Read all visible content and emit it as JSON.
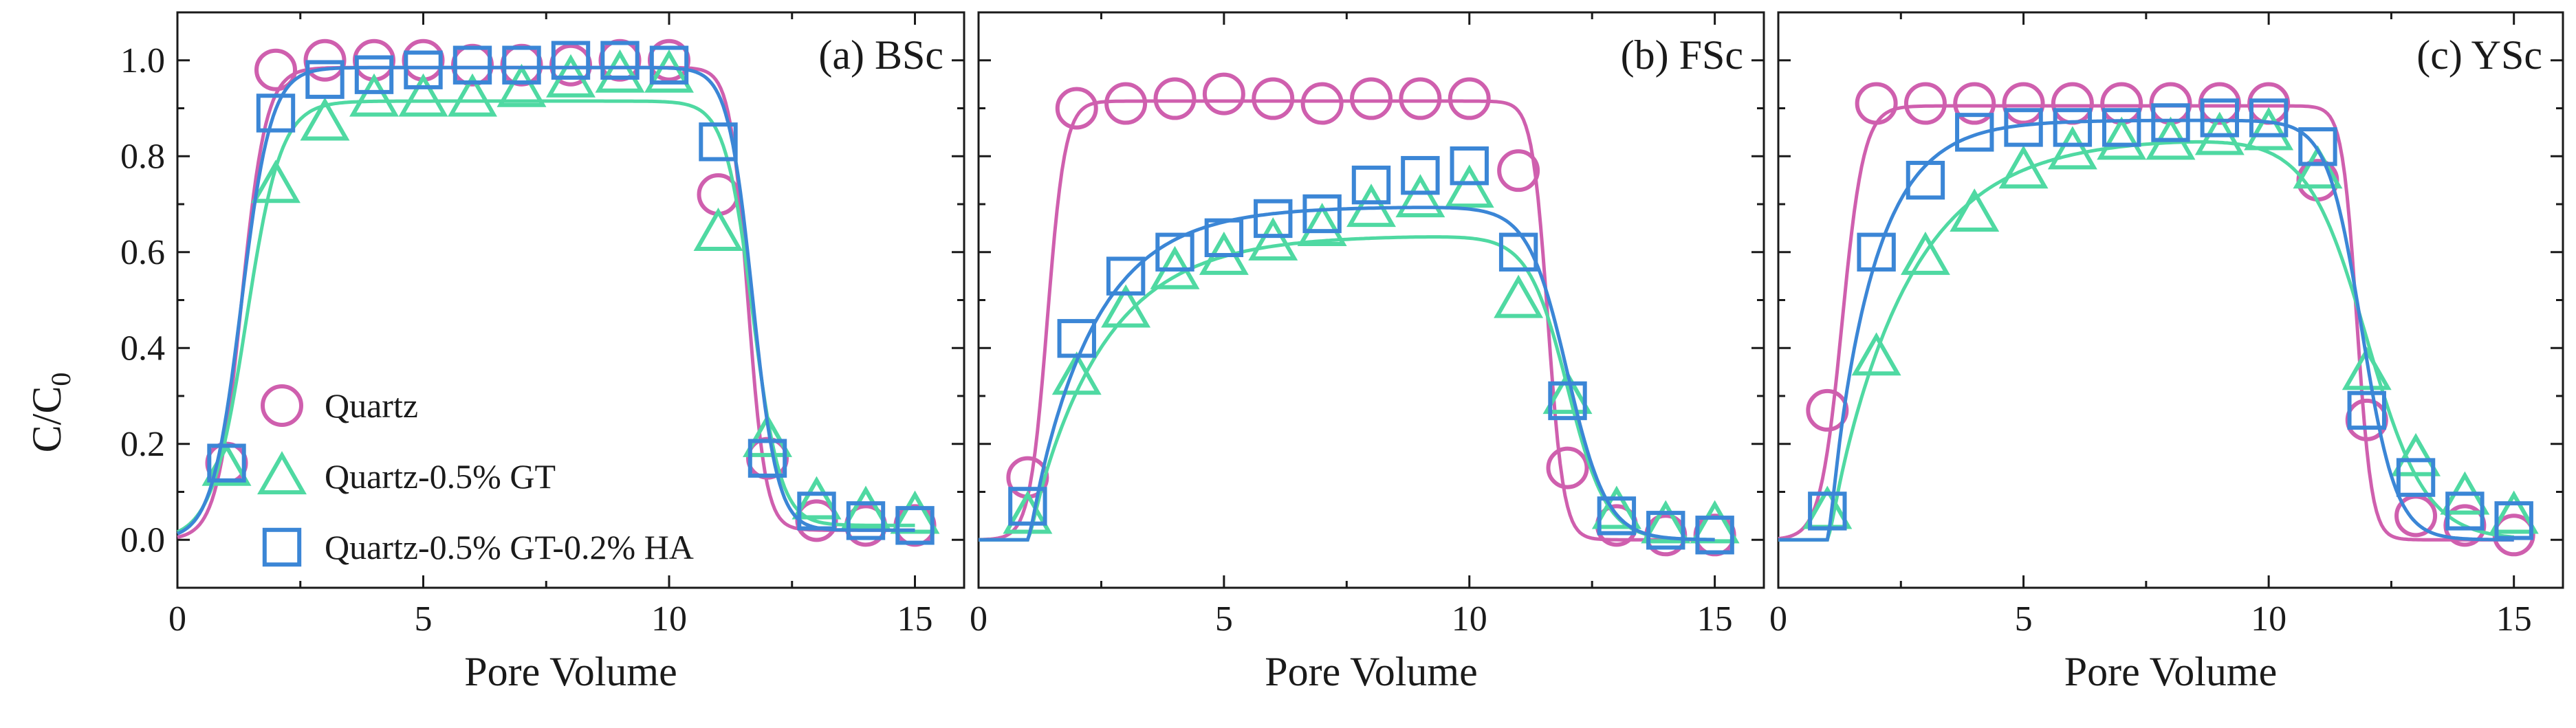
{
  "figure": {
    "ylabel": "C/C",
    "ylabel_subscript": "0"
  },
  "legend": {
    "items": [
      {
        "label": "Quartz",
        "marker": "circle",
        "color": "#cf5fae"
      },
      {
        "label": "Quartz-0.5% GT",
        "marker": "triangle",
        "color": "#4fd9a2"
      },
      {
        "label": "Quartz-0.5% GT-0.2% HA",
        "marker": "square",
        "color": "#3b86d6"
      }
    ]
  },
  "chart_data": [
    {
      "type": "scatter",
      "title": "(a) BSc",
      "xlabel": "Pore Volume",
      "ylabel": "C/C0",
      "xlim": [
        0,
        16
      ],
      "ylim": [
        -0.1,
        1.1
      ],
      "xticks": [
        0,
        5,
        10,
        15
      ],
      "yticks": [
        0.0,
        0.2,
        0.4,
        0.6,
        0.8,
        1.0
      ],
      "ytick_labels": [
        "0.0",
        "0.2",
        "0.4",
        "0.6",
        "0.8",
        "1.0"
      ],
      "x": [
        1,
        2,
        3,
        4,
        5,
        6,
        7,
        8,
        9,
        10,
        11,
        12,
        13,
        14,
        15
      ],
      "series": [
        {
          "name": "Quartz",
          "marker": "circle",
          "color": "#cf5fae",
          "values": [
            0.16,
            0.98,
            1.0,
            1.0,
            1.0,
            0.99,
            0.99,
            0.99,
            1.0,
            1.0,
            0.72,
            0.17,
            0.04,
            0.03,
            0.03
          ],
          "fit": {
            "plateau": 0.985,
            "rise_mid": 1.3,
            "rise_width": 0.25,
            "fall_mid": 11.6,
            "fall_width": 0.18,
            "tail": 0.02
          }
        },
        {
          "name": "Quartz-0.5% GT",
          "marker": "triangle",
          "color": "#4fd9a2",
          "values": [
            0.15,
            0.74,
            0.87,
            0.92,
            0.92,
            0.92,
            0.94,
            0.96,
            0.97,
            0.97,
            0.64,
            0.21,
            0.08,
            0.06,
            0.05
          ],
          "fit": {
            "plateau": 0.915,
            "rise_mid": 1.4,
            "rise_width": 0.35,
            "fall_mid": 11.7,
            "fall_width": 0.28,
            "tail": 0.03
          }
        },
        {
          "name": "Quartz-0.5% GT-0.2% HA",
          "marker": "square",
          "color": "#3b86d6",
          "values": [
            0.16,
            0.89,
            0.96,
            0.97,
            0.98,
            0.99,
            0.99,
            1.0,
            1.0,
            0.99,
            0.83,
            0.17,
            0.06,
            0.04,
            0.03
          ],
          "fit": {
            "plateau": 0.985,
            "rise_mid": 1.3,
            "rise_width": 0.3,
            "fall_mid": 11.7,
            "fall_width": 0.25,
            "tail": 0.02
          }
        }
      ]
    },
    {
      "type": "scatter",
      "title": "(b) FSc",
      "xlabel": "Pore Volume",
      "ylabel": "C/C0",
      "xlim": [
        0,
        16
      ],
      "ylim": [
        -0.1,
        1.1
      ],
      "xticks": [
        0,
        5,
        10,
        15
      ],
      "yticks": [
        0.0,
        0.2,
        0.4,
        0.6,
        0.8,
        1.0
      ],
      "ytick_labels": [],
      "x": [
        1,
        2,
        3,
        4,
        5,
        6,
        7,
        8,
        9,
        10,
        11,
        12,
        13,
        14,
        15
      ],
      "series": [
        {
          "name": "Quartz",
          "marker": "circle",
          "color": "#cf5fae",
          "values": [
            0.13,
            0.9,
            0.91,
            0.92,
            0.93,
            0.92,
            0.91,
            0.92,
            0.92,
            0.92,
            0.77,
            0.15,
            0.03,
            0.01,
            0.01
          ],
          "fit": {
            "plateau": 0.915,
            "rise_mid": 1.4,
            "rise_width": 0.18,
            "fall_mid": 11.6,
            "fall_width": 0.16,
            "tail": 0.0
          }
        },
        {
          "name": "Quartz-0.5% GT",
          "marker": "triangle",
          "color": "#4fd9a2",
          "values": [
            0.05,
            0.34,
            0.48,
            0.56,
            0.59,
            0.62,
            0.65,
            0.69,
            0.71,
            0.73,
            0.5,
            0.3,
            0.06,
            0.03,
            0.03
          ],
          "fit": {
            "plateau": 0.635,
            "rise_mid": 1.0,
            "rise_tau": 1.5,
            "fall_mid": 12.0,
            "fall_width": 0.4,
            "tail": 0.0
          }
        },
        {
          "name": "Quartz-0.5% GT-0.2% HA",
          "marker": "square",
          "color": "#3b86d6",
          "values": [
            0.07,
            0.42,
            0.55,
            0.6,
            0.63,
            0.67,
            0.68,
            0.74,
            0.76,
            0.78,
            0.6,
            0.29,
            0.05,
            0.02,
            0.01
          ],
          "fit": {
            "plateau": 0.695,
            "rise_mid": 1.0,
            "rise_tau": 1.3,
            "fall_mid": 12.0,
            "fall_width": 0.4,
            "tail": 0.0
          }
        }
      ]
    },
    {
      "type": "scatter",
      "title": "(c) YSc",
      "xlabel": "Pore Volume",
      "ylabel": "C/C0",
      "xlim": [
        0,
        16
      ],
      "ylim": [
        -0.1,
        1.1
      ],
      "xticks": [
        0,
        5,
        10,
        15
      ],
      "yticks": [
        0.0,
        0.2,
        0.4,
        0.6,
        0.8,
        1.0
      ],
      "ytick_labels": [],
      "x": [
        1,
        2,
        3,
        4,
        5,
        6,
        7,
        8,
        9,
        10,
        11,
        12,
        13,
        14,
        15
      ],
      "series": [
        {
          "name": "Quartz",
          "marker": "circle",
          "color": "#cf5fae",
          "values": [
            0.27,
            0.91,
            0.91,
            0.91,
            0.91,
            0.91,
            0.91,
            0.91,
            0.91,
            0.91,
            0.75,
            0.25,
            0.05,
            0.03,
            0.01
          ],
          "fit": {
            "plateau": 0.905,
            "rise_mid": 1.3,
            "rise_width": 0.22,
            "fall_mid": 11.8,
            "fall_width": 0.15,
            "tail": 0.0
          }
        },
        {
          "name": "Quartz-0.5% GT",
          "marker": "triangle",
          "color": "#4fd9a2",
          "values": [
            0.06,
            0.38,
            0.59,
            0.68,
            0.77,
            0.81,
            0.83,
            0.83,
            0.84,
            0.85,
            0.77,
            0.35,
            0.17,
            0.09,
            0.05
          ],
          "fit": {
            "plateau": 0.84,
            "rise_mid": 1.0,
            "rise_tau": 1.6,
            "fall_mid": 12.0,
            "fall_width": 0.6,
            "tail": 0.0
          }
        },
        {
          "name": "Quartz-0.5% GT-0.2% HA",
          "marker": "square",
          "color": "#3b86d6",
          "values": [
            0.06,
            0.6,
            0.75,
            0.85,
            0.86,
            0.86,
            0.86,
            0.87,
            0.88,
            0.88,
            0.82,
            0.27,
            0.13,
            0.06,
            0.04
          ],
          "fit": {
            "plateau": 0.875,
            "rise_mid": 1.0,
            "rise_tau": 0.9,
            "fall_mid": 11.9,
            "fall_width": 0.35,
            "tail": 0.0
          }
        }
      ]
    }
  ]
}
